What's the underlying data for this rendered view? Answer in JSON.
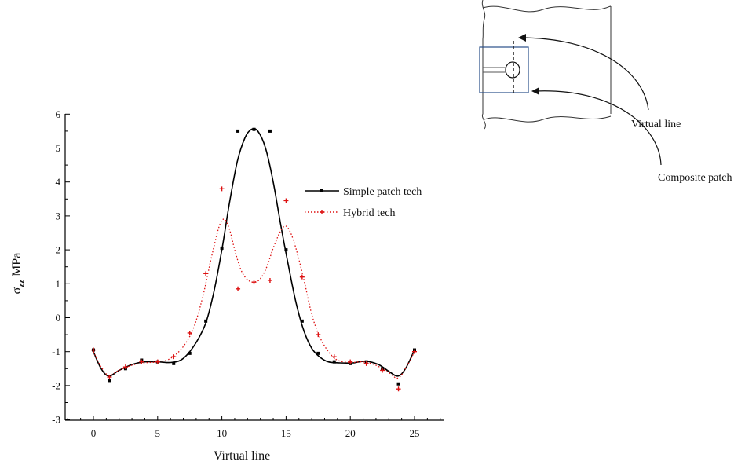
{
  "chart_data": {
    "type": "line",
    "xlabel": "Virtual line",
    "ylabel_main": "σ",
    "ylabel_sub": "zz",
    "ylabel_unit": "MPa",
    "xlim": [
      -2,
      27
    ],
    "ylim": [
      -3,
      6
    ],
    "xticks": [
      0,
      5,
      10,
      15,
      20,
      25
    ],
    "yticks": [
      -3,
      -2,
      -1,
      0,
      1,
      2,
      3,
      4,
      5,
      6
    ],
    "legend_position": "right",
    "series": [
      {
        "name": "Simple patch tech",
        "color": "#000000",
        "style": "solid",
        "marker": "square",
        "points": [
          [
            0,
            -0.95
          ],
          [
            1.25,
            -1.85
          ],
          [
            2.5,
            -1.5
          ],
          [
            3.75,
            -1.25
          ],
          [
            5,
            -1.3
          ],
          [
            6.25,
            -1.35
          ],
          [
            7.5,
            -1.05
          ],
          [
            8.75,
            -0.1
          ],
          [
            10,
            2.05
          ],
          [
            11.25,
            5.5
          ],
          [
            12.5,
            5.55
          ],
          [
            13.75,
            5.5
          ],
          [
            15,
            2.0
          ],
          [
            16.25,
            -0.1
          ],
          [
            17.5,
            -1.05
          ],
          [
            18.75,
            -1.3
          ],
          [
            20,
            -1.35
          ],
          [
            21.25,
            -1.3
          ],
          [
            22.5,
            -1.5
          ],
          [
            23.75,
            -1.95
          ],
          [
            25,
            -0.95
          ]
        ],
        "curve": [
          [
            0,
            -1.0
          ],
          [
            0.6,
            -1.5
          ],
          [
            1.2,
            -1.72
          ],
          [
            2,
            -1.55
          ],
          [
            3,
            -1.38
          ],
          [
            4,
            -1.3
          ],
          [
            5,
            -1.3
          ],
          [
            6,
            -1.32
          ],
          [
            6.8,
            -1.25
          ],
          [
            7.5,
            -1.0
          ],
          [
            8.2,
            -0.6
          ],
          [
            8.8,
            -0.1
          ],
          [
            9.4,
            0.8
          ],
          [
            10,
            2.0
          ],
          [
            10.6,
            3.4
          ],
          [
            11.2,
            4.6
          ],
          [
            11.8,
            5.3
          ],
          [
            12.3,
            5.55
          ],
          [
            12.8,
            5.5
          ],
          [
            13.4,
            5.0
          ],
          [
            14,
            4.0
          ],
          [
            14.6,
            2.7
          ],
          [
            15.2,
            1.5
          ],
          [
            15.8,
            0.4
          ],
          [
            16.4,
            -0.4
          ],
          [
            17,
            -0.9
          ],
          [
            17.6,
            -1.15
          ],
          [
            18.3,
            -1.3
          ],
          [
            19.2,
            -1.33
          ],
          [
            20.2,
            -1.33
          ],
          [
            21.2,
            -1.28
          ],
          [
            22.2,
            -1.38
          ],
          [
            23,
            -1.58
          ],
          [
            23.7,
            -1.72
          ],
          [
            24.3,
            -1.5
          ],
          [
            25,
            -0.95
          ]
        ]
      },
      {
        "name": "Hybrid tech",
        "color": "#dd1111",
        "style": "dotted",
        "marker": "cross",
        "points": [
          [
            0,
            -0.95
          ],
          [
            1.25,
            -1.75
          ],
          [
            2.5,
            -1.45
          ],
          [
            3.75,
            -1.3
          ],
          [
            5,
            -1.3
          ],
          [
            6.25,
            -1.15
          ],
          [
            7.5,
            -0.45
          ],
          [
            8.75,
            1.3
          ],
          [
            10,
            3.8
          ],
          [
            11.25,
            0.85
          ],
          [
            12.5,
            1.05
          ],
          [
            13.75,
            1.1
          ],
          [
            15,
            3.45
          ],
          [
            16.25,
            1.2
          ],
          [
            17.5,
            -0.5
          ],
          [
            18.75,
            -1.15
          ],
          [
            20,
            -1.3
          ],
          [
            21.25,
            -1.35
          ],
          [
            22.5,
            -1.55
          ],
          [
            23.75,
            -2.1
          ],
          [
            25,
            -1.0
          ]
        ],
        "curve": [
          [
            0,
            -1.0
          ],
          [
            0.6,
            -1.45
          ],
          [
            1.2,
            -1.7
          ],
          [
            2,
            -1.55
          ],
          [
            3,
            -1.4
          ],
          [
            4,
            -1.33
          ],
          [
            5,
            -1.3
          ],
          [
            6,
            -1.2
          ],
          [
            7,
            -0.85
          ],
          [
            7.8,
            -0.3
          ],
          [
            8.5,
            0.6
          ],
          [
            9.2,
            1.8
          ],
          [
            9.8,
            2.7
          ],
          [
            10.2,
            2.9
          ],
          [
            10.6,
            2.6
          ],
          [
            11,
            2.0
          ],
          [
            11.5,
            1.4
          ],
          [
            12,
            1.12
          ],
          [
            12.5,
            1.05
          ],
          [
            13,
            1.15
          ],
          [
            13.5,
            1.5
          ],
          [
            14,
            2.05
          ],
          [
            14.5,
            2.5
          ],
          [
            14.9,
            2.7
          ],
          [
            15.3,
            2.55
          ],
          [
            15.8,
            2.0
          ],
          [
            16.4,
            1.1
          ],
          [
            17,
            0.1
          ],
          [
            17.6,
            -0.55
          ],
          [
            18.3,
            -1.0
          ],
          [
            19,
            -1.25
          ],
          [
            20,
            -1.32
          ],
          [
            21,
            -1.3
          ],
          [
            22,
            -1.4
          ],
          [
            23,
            -1.62
          ],
          [
            23.7,
            -1.78
          ],
          [
            24.3,
            -1.5
          ],
          [
            25,
            -1.0
          ]
        ]
      }
    ]
  },
  "diagram": {
    "label_virtual_line": "Virtual line",
    "label_composite_patch": "Composite patch"
  }
}
